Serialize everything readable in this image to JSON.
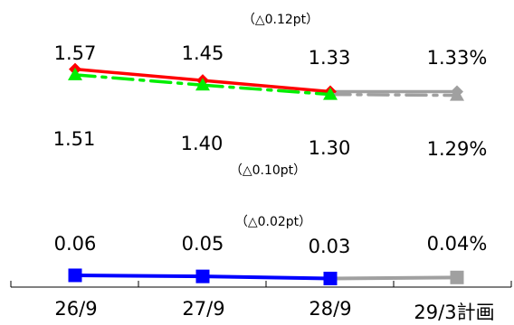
{
  "chart_data": {
    "type": "line",
    "categories": [
      "26/9",
      "27/9",
      "28/9",
      "29/3計画"
    ],
    "series": [
      {
        "values": [
          1.57,
          1.45,
          1.33,
          1.33
        ],
        "labels": [
          "1.57",
          "1.45",
          "1.33",
          "1.33%"
        ],
        "marker": "diamond",
        "color": "#ff0000",
        "plan_color": "#a0a0a0",
        "dashed": false
      },
      {
        "values": [
          1.51,
          1.4,
          1.3,
          1.29
        ],
        "labels": [
          "1.51",
          "1.40",
          "1.30",
          "1.29%"
        ],
        "marker": "triangle",
        "color": "#00ee00",
        "plan_color": "#a0a0a0",
        "dashed": true
      },
      {
        "values": [
          0.06,
          0.05,
          0.03,
          0.04
        ],
        "labels": [
          "0.06",
          "0.05",
          "0.03",
          "0.04%"
        ],
        "marker": "square",
        "color": "#0000ff",
        "plan_color": "#a0a0a0",
        "dashed": false
      }
    ],
    "annotations": [
      "（△0.12pt）",
      "（△0.10pt）",
      "（△0.02pt）"
    ]
  }
}
